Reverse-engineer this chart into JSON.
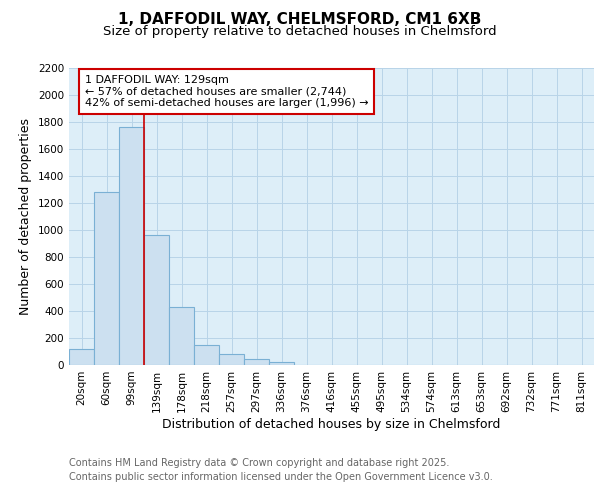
{
  "title1": "1, DAFFODIL WAY, CHELMSFORD, CM1 6XB",
  "title2": "Size of property relative to detached houses in Chelmsford",
  "xlabel": "Distribution of detached houses by size in Chelmsford",
  "ylabel": "Number of detached properties",
  "categories": [
    "20sqm",
    "60sqm",
    "99sqm",
    "139sqm",
    "178sqm",
    "218sqm",
    "257sqm",
    "297sqm",
    "336sqm",
    "376sqm",
    "416sqm",
    "455sqm",
    "495sqm",
    "534sqm",
    "574sqm",
    "613sqm",
    "653sqm",
    "692sqm",
    "732sqm",
    "771sqm",
    "811sqm"
  ],
  "values": [
    120,
    1280,
    1760,
    960,
    430,
    150,
    80,
    42,
    20,
    0,
    0,
    0,
    0,
    0,
    0,
    0,
    0,
    0,
    0,
    0,
    0
  ],
  "bar_color": "#cce0f0",
  "bar_edge_color": "#7ab0d4",
  "vline_x": 2.5,
  "vline_color": "#cc0000",
  "annotation_text": "1 DAFFODIL WAY: 129sqm\n← 57% of detached houses are smaller (2,744)\n42% of semi-detached houses are larger (1,996) →",
  "annotation_box_facecolor": "#ffffff",
  "annotation_box_edgecolor": "#cc0000",
  "ylim": [
    0,
    2200
  ],
  "yticks": [
    0,
    200,
    400,
    600,
    800,
    1000,
    1200,
    1400,
    1600,
    1800,
    2000,
    2200
  ],
  "grid_color": "#b8d4e8",
  "background_color": "#ddeef8",
  "footer1": "Contains HM Land Registry data © Crown copyright and database right 2025.",
  "footer2": "Contains public sector information licensed under the Open Government Licence v3.0.",
  "title1_fontsize": 11,
  "title2_fontsize": 9.5,
  "axis_label_fontsize": 9,
  "tick_fontsize": 7.5,
  "annotation_fontsize": 8,
  "footer_fontsize": 7
}
